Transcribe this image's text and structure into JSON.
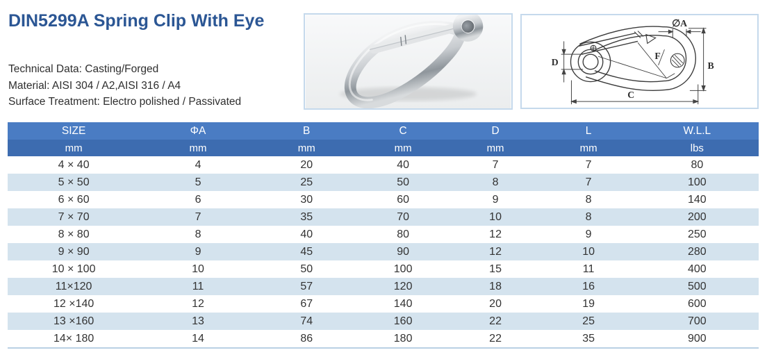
{
  "page_title": "DIN5299A Spring Clip With Eye",
  "specs": {
    "technical_data": "Technical Data: Casting/Forged",
    "material": "Material: AISI 304 / A2,AISI 316 / A4",
    "surface_treatment": "Surface Treatment: Electro polished / Passivated"
  },
  "diagram": {
    "label_a": "∅A",
    "label_b": "B",
    "label_c": "C",
    "label_d": "D",
    "label_f": "F"
  },
  "table": {
    "headers": [
      "SIZE",
      "ΦA",
      "B",
      "C",
      "D",
      "L",
      "W.L.L"
    ],
    "units": [
      "mm",
      "mm",
      "mm",
      "mm",
      "mm",
      "mm",
      "lbs"
    ],
    "rows": [
      [
        "4 × 40",
        "4",
        "20",
        "40",
        "7",
        "7",
        "80"
      ],
      [
        "5 × 50",
        "5",
        "25",
        "50",
        "8",
        "7",
        "100"
      ],
      [
        "6 × 60",
        "6",
        "30",
        "60",
        "9",
        "8",
        "140"
      ],
      [
        "7 × 70",
        "7",
        "35",
        "70",
        "10",
        "8",
        "200"
      ],
      [
        "8 × 80",
        "8",
        "40",
        "80",
        "12",
        "9",
        "250"
      ],
      [
        "9 × 90",
        "9",
        "45",
        "90",
        "12",
        "10",
        "280"
      ],
      [
        "10 × 100",
        "10",
        "50",
        "100",
        "15",
        "11",
        "400"
      ],
      [
        "11×120",
        "11",
        "57",
        "120",
        "18",
        "16",
        "500"
      ],
      [
        "12 ×140",
        "12",
        "67",
        "140",
        "20",
        "19",
        "600"
      ],
      [
        "13 ×160",
        "13",
        "74",
        "160",
        "22",
        "25",
        "700"
      ],
      [
        "14× 180",
        "14",
        "86",
        "180",
        "22",
        "35",
        "900"
      ]
    ]
  },
  "colors": {
    "title": "#2b5694",
    "hdrtop": "#4a7cc3",
    "hdrbottom": "#3d6cb0",
    "rowalt": "#d4e3ee",
    "boxborder": "#c5d9ec",
    "tablebottom": "#b9d0e4"
  }
}
